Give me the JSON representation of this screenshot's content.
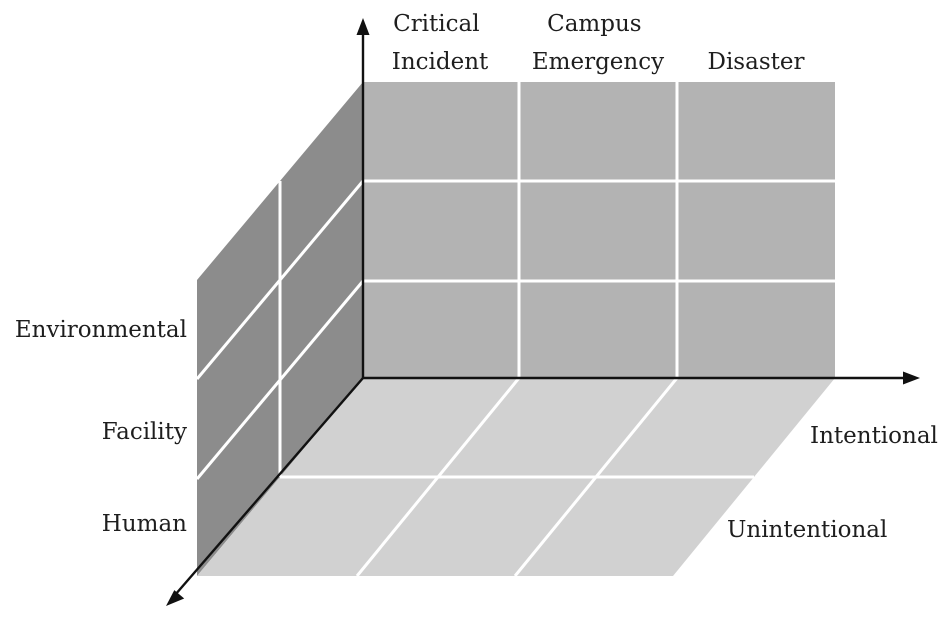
{
  "diagram": {
    "columns": [
      "Critical|Incident",
      "Campus|Emergency",
      "Disaster"
    ],
    "rows": [
      "Environmental",
      "Facility",
      "Human"
    ],
    "depth": [
      "Intentional",
      "Unintentional"
    ]
  },
  "colors": {
    "back_wall": "#b3b3b3",
    "side_wall": "#8c8c8c",
    "floor": "#d1d1d1",
    "grid_line": "#ffffff",
    "axis": "#111111",
    "text": "#1e1e1e"
  }
}
